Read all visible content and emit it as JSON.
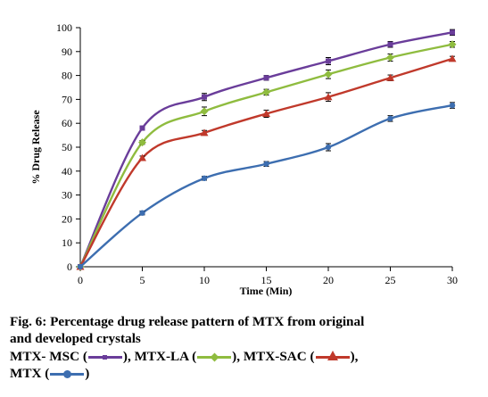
{
  "chart_data": {
    "type": "line",
    "title": "",
    "xlabel": "Time (Min)",
    "ylabel": "% Drug Release",
    "xlim": [
      0,
      30
    ],
    "ylim": [
      0,
      100
    ],
    "xticks": [
      0,
      5,
      10,
      15,
      20,
      25,
      30
    ],
    "yticks": [
      0,
      10,
      20,
      30,
      40,
      50,
      60,
      70,
      80,
      90,
      100
    ],
    "grid": false,
    "x": [
      0,
      5,
      10,
      15,
      20,
      25,
      30
    ],
    "series": [
      {
        "name": "MTX- MSC",
        "color": "#6a3d9a",
        "marker": "square",
        "values": [
          0,
          58,
          71,
          79,
          86,
          93,
          98
        ],
        "errors": [
          0,
          0.8,
          1.5,
          1,
          1.5,
          1.2,
          1.2
        ]
      },
      {
        "name": "MTX-LA",
        "color": "#8fbc3f",
        "marker": "diamond",
        "values": [
          0,
          52,
          65,
          73,
          80.5,
          87.5,
          93
        ],
        "errors": [
          0,
          0.8,
          1.8,
          1.2,
          1.8,
          1.5,
          1.2
        ]
      },
      {
        "name": "MTX-SAC",
        "color": "#c0392b",
        "marker": "triangle",
        "values": [
          0,
          45.5,
          56,
          64,
          71,
          79,
          87
        ],
        "errors": [
          0,
          0.8,
          1,
          1.5,
          1.8,
          1.2,
          1
        ]
      },
      {
        "name": "MTX",
        "color": "#3d6eb0",
        "marker": "circle",
        "values": [
          0,
          22.5,
          37,
          43,
          50,
          62,
          67.5
        ],
        "errors": [
          0,
          0.8,
          0.8,
          1,
          1.5,
          1.2,
          1.2
        ]
      }
    ]
  },
  "caption": {
    "line1": "Fig. 6: Percentage drug release pattern of MTX from original",
    "line2": "and developed crystals"
  },
  "legend": {
    "items": [
      {
        "label": "MTX- MSC",
        "open": " (",
        "close": "),",
        "color": "#6a3d9a",
        "marker": "square"
      },
      {
        "label": "MTX-LA",
        "open": " (",
        "close": "),",
        "color": "#8fbc3f",
        "marker": "diamond"
      },
      {
        "label": "MTX-SAC",
        "open": " (",
        "close": "),",
        "color": "#c0392b",
        "marker": "triangle"
      },
      {
        "label": "MTX",
        "open": " (",
        "close": ")",
        "color": "#3d6eb0",
        "marker": "circle"
      }
    ]
  }
}
